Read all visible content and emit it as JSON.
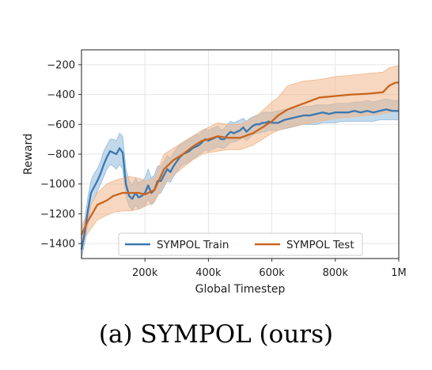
{
  "figure": {
    "caption": "(a) SYMPOL (ours)"
  },
  "chart_data": {
    "type": "line",
    "xlabel": "Global Timestep",
    "ylabel": "Reward",
    "xlim": [
      0,
      1000000
    ],
    "ylim": [
      -1500,
      -100
    ],
    "x_ticks": [
      {
        "value": 200000,
        "label": "200k"
      },
      {
        "value": 400000,
        "label": "400k"
      },
      {
        "value": 600000,
        "label": "600k"
      },
      {
        "value": 800000,
        "label": "800k"
      },
      {
        "value": 1000000,
        "label": "1M"
      }
    ],
    "y_ticks": [
      {
        "value": -200,
        "label": "−200"
      },
      {
        "value": -400,
        "label": "−400"
      },
      {
        "value": -600,
        "label": "−600"
      },
      {
        "value": -800,
        "label": "−800"
      },
      {
        "value": -1000,
        "label": "−1000"
      },
      {
        "value": -1200,
        "label": "−1200"
      },
      {
        "value": -1400,
        "label": "−1400"
      }
    ],
    "grid": true,
    "legend": {
      "position": "bottom-center",
      "columns": 2
    },
    "series": [
      {
        "name": "SYMPOL Train",
        "color": "#3a78b0",
        "band_color": "#8fbadb",
        "x": [
          0,
          10000,
          20000,
          30000,
          40000,
          50000,
          60000,
          70000,
          80000,
          90000,
          100000,
          110000,
          120000,
          130000,
          140000,
          150000,
          160000,
          170000,
          180000,
          190000,
          200000,
          210000,
          220000,
          230000,
          240000,
          250000,
          260000,
          270000,
          280000,
          290000,
          300000,
          310000,
          320000,
          330000,
          340000,
          350000,
          360000,
          370000,
          380000,
          390000,
          400000,
          410000,
          420000,
          430000,
          440000,
          450000,
          460000,
          470000,
          480000,
          490000,
          500000,
          510000,
          520000,
          530000,
          540000,
          550000,
          560000,
          570000,
          580000,
          590000,
          600000,
          620000,
          640000,
          660000,
          680000,
          700000,
          720000,
          740000,
          760000,
          780000,
          800000,
          820000,
          840000,
          860000,
          880000,
          900000,
          920000,
          940000,
          960000,
          980000,
          1000000
        ],
        "values": [
          -1440,
          -1330,
          -1180,
          -1060,
          -1020,
          -980,
          -930,
          -870,
          -820,
          -780,
          -790,
          -800,
          -760,
          -790,
          -1000,
          -1080,
          -1100,
          -1060,
          -1090,
          -1080,
          -1060,
          -1010,
          -1060,
          -1040,
          -980,
          -980,
          -940,
          -900,
          -920,
          -880,
          -850,
          -820,
          -800,
          -790,
          -780,
          -760,
          -750,
          -740,
          -720,
          -700,
          -710,
          -700,
          -690,
          -680,
          -700,
          -700,
          -670,
          -650,
          -660,
          -650,
          -640,
          -620,
          -650,
          -630,
          -610,
          -600,
          -600,
          -590,
          -590,
          -580,
          -590,
          -590,
          -570,
          -560,
          -550,
          -540,
          -540,
          -530,
          -520,
          -530,
          -520,
          -520,
          -520,
          -510,
          -520,
          -510,
          -520,
          -510,
          -500,
          -510,
          -510
        ],
        "lower": [
          -1500,
          -1400,
          -1270,
          -1140,
          -1100,
          -1050,
          -1000,
          -950,
          -900,
          -870,
          -880,
          -900,
          -870,
          -900,
          -1080,
          -1150,
          -1180,
          -1140,
          -1170,
          -1160,
          -1150,
          -1100,
          -1140,
          -1120,
          -1070,
          -1060,
          -1020,
          -980,
          -990,
          -950,
          -920,
          -890,
          -870,
          -860,
          -850,
          -830,
          -820,
          -800,
          -790,
          -770,
          -780,
          -770,
          -760,
          -750,
          -760,
          -760,
          -740,
          -720,
          -720,
          -710,
          -700,
          -690,
          -710,
          -690,
          -670,
          -660,
          -660,
          -650,
          -650,
          -640,
          -640,
          -640,
          -630,
          -620,
          -610,
          -600,
          -600,
          -600,
          -590,
          -590,
          -590,
          -580,
          -580,
          -580,
          -580,
          -580,
          -580,
          -570,
          -570,
          -570,
          -570
        ],
        "upper": [
          -1370,
          -1250,
          -1090,
          -980,
          -930,
          -900,
          -850,
          -780,
          -740,
          -700,
          -700,
          -710,
          -660,
          -680,
          -900,
          -980,
          -1010,
          -960,
          -990,
          -980,
          -960,
          -900,
          -960,
          -940,
          -880,
          -880,
          -850,
          -810,
          -830,
          -790,
          -760,
          -740,
          -720,
          -710,
          -700,
          -680,
          -670,
          -670,
          -650,
          -630,
          -640,
          -630,
          -620,
          -610,
          -640,
          -630,
          -600,
          -580,
          -590,
          -580,
          -570,
          -560,
          -580,
          -560,
          -550,
          -540,
          -540,
          -520,
          -520,
          -520,
          -520,
          -510,
          -500,
          -500,
          -490,
          -480,
          -480,
          -470,
          -470,
          -470,
          -460,
          -460,
          -460,
          -450,
          -450,
          -440,
          -450,
          -440,
          -430,
          -440,
          -440
        ]
      },
      {
        "name": "SYMPOL Test",
        "color": "#c8651f",
        "band_color": "#f0b78a",
        "x": [
          0,
          20000,
          50000,
          80000,
          100000,
          130000,
          150000,
          180000,
          200000,
          230000,
          260000,
          290000,
          320000,
          350000,
          380000,
          400000,
          430000,
          460000,
          500000,
          540000,
          570000,
          600000,
          620000,
          650000,
          700000,
          750000,
          800000,
          850000,
          900000,
          950000,
          970000,
          990000,
          1000000
        ],
        "values": [
          -1340,
          -1250,
          -1140,
          -1110,
          -1080,
          -1060,
          -1060,
          -1060,
          -1070,
          -1040,
          -900,
          -840,
          -800,
          -750,
          -710,
          -700,
          -680,
          -690,
          -690,
          -660,
          -620,
          -580,
          -540,
          -500,
          -460,
          -420,
          -410,
          -400,
          -395,
          -385,
          -340,
          -320,
          -320
        ],
        "lower": [
          -1410,
          -1330,
          -1240,
          -1210,
          -1190,
          -1180,
          -1180,
          -1170,
          -1150,
          -1120,
          -1000,
          -940,
          -890,
          -840,
          -800,
          -790,
          -780,
          -770,
          -770,
          -740,
          -700,
          -660,
          -640,
          -620,
          -600,
          -580,
          -560,
          -550,
          -540,
          -530,
          -520,
          -510,
          -510
        ],
        "upper": [
          -1290,
          -1180,
          -1060,
          -1000,
          -980,
          -960,
          -950,
          -960,
          -980,
          -960,
          -800,
          -760,
          -720,
          -680,
          -640,
          -620,
          -590,
          -600,
          -600,
          -560,
          -510,
          -450,
          -420,
          -340,
          -310,
          -300,
          -280,
          -270,
          -260,
          -250,
          -220,
          -210,
          -210
        ]
      }
    ]
  }
}
